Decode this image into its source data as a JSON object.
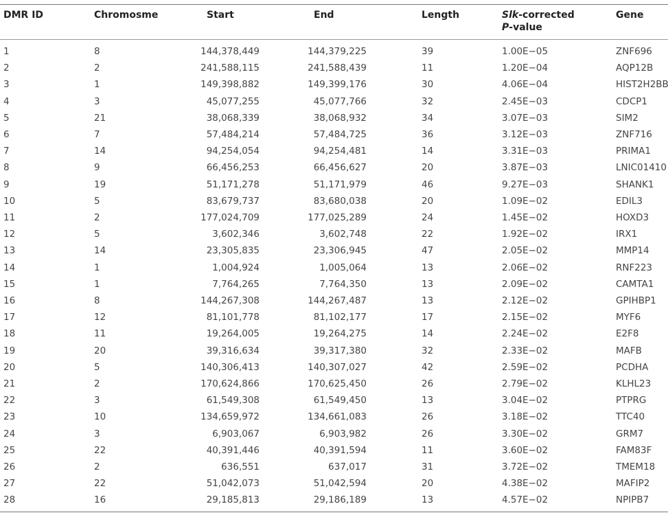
{
  "headers": {
    "id": "DMR ID",
    "chrom": "Chromosme",
    "start": "Start",
    "end": "End",
    "length": "Length",
    "p_italic1": "Slk",
    "p_rest1": "-corrected",
    "p_italic2": "P",
    "p_rest2": "-value",
    "gene": "Gene"
  },
  "rows": [
    [
      "1",
      "8",
      "144,378,449",
      "144,379,225",
      "39",
      "1.00E−05",
      "ZNF696"
    ],
    [
      "2",
      "2",
      "241,588,115",
      "241,588,439",
      "11",
      "1.20E−04",
      "AQP12B"
    ],
    [
      "3",
      "1",
      "149,398,882",
      "149,399,176",
      "30",
      "4.06E−04",
      "HIST2H2BB"
    ],
    [
      "4",
      "3",
      "45,077,255",
      "45,077,766",
      "32",
      "2.45E−03",
      "CDCP1"
    ],
    [
      "5",
      "21",
      "38,068,339",
      "38,068,932",
      "34",
      "3.07E−03",
      "SIM2"
    ],
    [
      "6",
      "7",
      "57,484,214",
      "57,484,725",
      "36",
      "3.12E−03",
      "ZNF716"
    ],
    [
      "7",
      "14",
      "94,254,054",
      "94,254,481",
      "14",
      "3.31E−03",
      "PRIMA1"
    ],
    [
      "8",
      "9",
      "66,456,253",
      "66,456,627",
      "20",
      "3.87E−03",
      "LNIC01410"
    ],
    [
      "9",
      "19",
      "51,171,278",
      "51,171,979",
      "46",
      "9.27E−03",
      "SHANK1"
    ],
    [
      "10",
      "5",
      "83,679,737",
      "83,680,038",
      "20",
      "1.09E−02",
      "EDIL3"
    ],
    [
      "11",
      "2",
      "177,024,709",
      "177,025,289",
      "24",
      "1.45E−02",
      "HOXD3"
    ],
    [
      "12",
      "5",
      "3,602,346",
      "3,602,748",
      "22",
      "1.92E−02",
      "IRX1"
    ],
    [
      "13",
      "14",
      "23,305,835",
      "23,306,945",
      "47",
      "2.05E−02",
      "MMP14"
    ],
    [
      "14",
      "1",
      "1,004,924",
      "1,005,064",
      "13",
      "2.06E−02",
      "RNF223"
    ],
    [
      "15",
      "1",
      "7,764,265",
      "7,764,350",
      "13",
      "2.09E−02",
      "CAMTA1"
    ],
    [
      "16",
      "8",
      "144,267,308",
      "144,267,487",
      "13",
      "2.12E−02",
      "GPIHBP1"
    ],
    [
      "17",
      "12",
      "81,101,778",
      "81,102,177",
      "17",
      "2.15E−02",
      "MYF6"
    ],
    [
      "18",
      "11",
      "19,264,005",
      "19,264,275",
      "14",
      "2.24E−02",
      "E2F8"
    ],
    [
      "19",
      "20",
      "39,316,634",
      "39,317,380",
      "32",
      "2.33E−02",
      "MAFB"
    ],
    [
      "20",
      "5",
      "140,306,413",
      "140,307,027",
      "42",
      "2.59E−02",
      "PCDHA"
    ],
    [
      "21",
      "2",
      "170,624,866",
      "170,625,450",
      "26",
      "2.79E−02",
      "KLHL23"
    ],
    [
      "22",
      "3",
      "61,549,308",
      "61,549,450",
      "13",
      "3.04E−02",
      "PTPRG"
    ],
    [
      "23",
      "10",
      "134,659,972",
      "134,661,083",
      "26",
      "3.18E−02",
      "TTC40"
    ],
    [
      "24",
      "3",
      "6,903,067",
      "6,903,982",
      "26",
      "3.30E−02",
      "GRM7"
    ],
    [
      "25",
      "22",
      "40,391,446",
      "40,391,594",
      "11",
      "3.60E−02",
      "FAM83F"
    ],
    [
      "26",
      "2",
      "636,551",
      "637,017",
      "31",
      "3.72E−02",
      "TMEM18"
    ],
    [
      "27",
      "22",
      "51,042,073",
      "51,042,594",
      "20",
      "4.38E−02",
      "MAFIP2"
    ],
    [
      "28",
      "16",
      "29,185,813",
      "29,186,189",
      "13",
      "4.57E−02",
      "NPIPB7"
    ]
  ]
}
